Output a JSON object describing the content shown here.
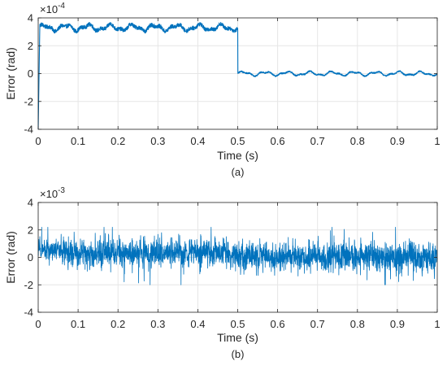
{
  "chart_data": [
    {
      "type": "line",
      "panel_label": "(a)",
      "xlabel": "Time (s)",
      "ylabel": "Error (rad)",
      "exponent_base": "×10",
      "exponent_power": "-4",
      "xlim": [
        0,
        1
      ],
      "ylim": [
        -4,
        4
      ],
      "xticks": [
        "0",
        "0.1",
        "0.2",
        "0.3",
        "0.4",
        "0.5",
        "0.6",
        "0.7",
        "0.8",
        "0.9",
        "1"
      ],
      "yticks": [
        "-4",
        "-2",
        "0",
        "2",
        "4"
      ],
      "grid": true,
      "color": "#0072BD",
      "segments": [
        {
          "t_start": 0.0,
          "t_end": 0.5,
          "mean": 3.3,
          "ripple": 0.18,
          "noise": 0.14
        },
        {
          "t_start": 0.5,
          "t_end": 1.0,
          "mean": 0.0,
          "ripple": 0.12,
          "noise": 0.05
        }
      ],
      "initial_transient": {
        "t": 0.004,
        "min": -4.0
      },
      "x": [
        0.0,
        0.02,
        0.05,
        0.1,
        0.15,
        0.2,
        0.25,
        0.3,
        0.35,
        0.4,
        0.45,
        0.5,
        0.503,
        0.55,
        0.6,
        0.65,
        0.7,
        0.75,
        0.8,
        0.85,
        0.9,
        0.95,
        1.0
      ],
      "y": [
        -4.0,
        3.2,
        3.3,
        3.5,
        3.3,
        3.2,
        3.4,
        3.3,
        3.2,
        3.3,
        3.2,
        3.3,
        0.1,
        0.0,
        0.05,
        -0.05,
        0.0,
        0.05,
        -0.05,
        0.0,
        0.05,
        0.0,
        0.0
      ]
    },
    {
      "type": "line",
      "panel_label": "(b)",
      "xlabel": "Time (s)",
      "ylabel": "Error (rad)",
      "exponent_base": "×10",
      "exponent_power": "-3",
      "xlim": [
        0,
        1
      ],
      "ylim": [
        -4,
        4
      ],
      "xticks": [
        "0",
        "0.1",
        "0.2",
        "0.3",
        "0.4",
        "0.5",
        "0.6",
        "0.7",
        "0.8",
        "0.9",
        "1"
      ],
      "yticks": [
        "-4",
        "-2",
        "0",
        "2",
        "4"
      ],
      "grid": true,
      "color": "#0072BD",
      "segments": [
        {
          "t_start": 0.0,
          "t_end": 0.06,
          "mean": 0.55,
          "ripple": 0.0,
          "noise": 0.45
        },
        {
          "t_start": 0.06,
          "t_end": 0.5,
          "mean": 0.3,
          "ripple": 0.0,
          "noise": 0.7
        },
        {
          "t_start": 0.5,
          "t_end": 1.0,
          "mean": 0.05,
          "ripple": 0.0,
          "noise": 0.7
        }
      ],
      "y_range_observed": [
        -2.0,
        2.2
      ],
      "x": [
        0.0,
        0.1,
        0.2,
        0.3,
        0.4,
        0.5,
        0.6,
        0.7,
        0.8,
        0.9,
        1.0
      ],
      "y": [
        0.5,
        0.3,
        0.4,
        0.3,
        0.2,
        0.1,
        0.0,
        0.1,
        0.0,
        0.1,
        0.0
      ]
    }
  ]
}
